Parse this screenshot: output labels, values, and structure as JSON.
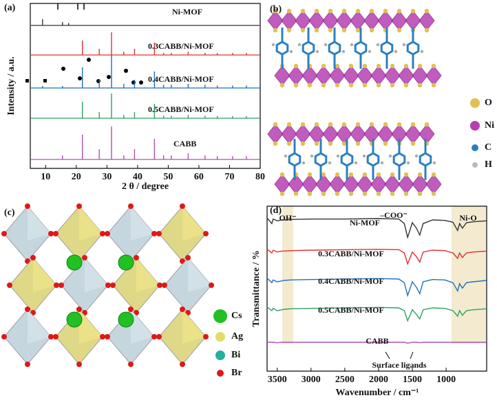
{
  "panel_labels": [
    "(a)",
    "(b)",
    "(c)",
    "(d)"
  ],
  "chart_data": [
    {
      "type": "stick",
      "xlabel": "2 θ / degree",
      "ylabel": "Intensity / a.u.",
      "xlim": [
        5,
        80
      ],
      "xticks": [
        10,
        20,
        30,
        40,
        50,
        60,
        70,
        80
      ],
      "ylim": [
        0,
        100
      ],
      "x": [
        9,
        15.5,
        17.5,
        22,
        27.5,
        31.5,
        35.5,
        39,
        45.5,
        48.5,
        51,
        56.5,
        62,
        66,
        71,
        75.5
      ],
      "series": [
        {
          "name": "Ni-MOF",
          "color": "#333333",
          "values": [
            15,
            8,
            6,
            null,
            null,
            null,
            null,
            null,
            null,
            null,
            null,
            null,
            null,
            null,
            null,
            null
          ]
        },
        {
          "name": "0.3CABB/Ni-MOF",
          "color": "#e03030",
          "values": [
            null,
            null,
            null,
            35,
            15,
            55,
            8,
            15,
            30,
            5,
            5,
            8,
            5,
            5,
            5,
            5
          ]
        },
        {
          "name": "0.4CABB/Ni-MOF",
          "color": "#1f6fc0",
          "values": [
            5,
            5,
            null,
            50,
            20,
            80,
            10,
            20,
            40,
            8,
            8,
            10,
            8,
            6,
            6,
            6
          ]
        },
        {
          "name": "0.5CABB/Ni-MOF",
          "color": "#2ea060",
          "values": [
            null,
            null,
            null,
            40,
            15,
            60,
            8,
            15,
            35,
            6,
            6,
            8,
            6,
            5,
            5,
            5
          ]
        },
        {
          "name": "CABB",
          "color": "#b050b0",
          "values": [
            null,
            10,
            null,
            60,
            25,
            80,
            10,
            25,
            50,
            10,
            10,
            15,
            10,
            8,
            8,
            8
          ]
        }
      ]
    },
    {
      "type": "line",
      "xlabel": "Wavenumber / cm⁻¹",
      "ylabel": "Transmittance / %",
      "xlim": [
        3650,
        400
      ],
      "xticks": [
        3500,
        3000,
        2500,
        2000,
        1500,
        1000
      ],
      "ylim": [
        30,
        90
      ],
      "annotations": [
        "OH⁻",
        "–COO⁻",
        "Ni-O",
        "Surface ligands"
      ],
      "x": [
        3650,
        3580,
        3560,
        3500,
        3430,
        3400,
        3300,
        3000,
        2500,
        2000,
        1700,
        1620,
        1570,
        1500,
        1440,
        1390,
        1340,
        1200,
        1020,
        900,
        830,
        800,
        760,
        700,
        600,
        400
      ],
      "series": [
        {
          "name": "Ni-MOF",
          "color": "#333333",
          "values": [
            82,
            70,
            80,
            76,
            78,
            78,
            79,
            80,
            80,
            81,
            80,
            70,
            40,
            72,
            60,
            45,
            70,
            78,
            77,
            73,
            55,
            70,
            60,
            72,
            74,
            76
          ]
        },
        {
          "name": "0.3CABB/Ni-MOF",
          "color": "#e03030",
          "values": [
            80,
            72,
            78,
            74,
            76,
            76,
            77,
            78,
            79,
            80,
            79,
            72,
            48,
            74,
            64,
            52,
            74,
            78,
            77,
            72,
            60,
            72,
            62,
            72,
            74,
            76
          ]
        },
        {
          "name": "0.4CABB/Ni-MOF",
          "color": "#1f6fc0",
          "values": [
            80,
            70,
            76,
            72,
            74,
            75,
            76,
            77,
            78,
            79,
            78,
            70,
            42,
            72,
            60,
            46,
            72,
            77,
            76,
            70,
            52,
            68,
            58,
            70,
            72,
            75
          ]
        },
        {
          "name": "0.5CABB/Ni-MOF",
          "color": "#2ea060",
          "values": [
            80,
            72,
            77,
            72,
            74,
            75,
            76,
            77,
            78,
            79,
            78,
            72,
            50,
            74,
            64,
            54,
            74,
            78,
            77,
            72,
            60,
            72,
            62,
            72,
            74,
            76
          ]
        },
        {
          "name": "CABB",
          "color": "#b050b0",
          "values": [
            78,
            78,
            78,
            77,
            78,
            78,
            78,
            78,
            78,
            78,
            78,
            78,
            76,
            78,
            78,
            77,
            78,
            78,
            78,
            78,
            78,
            78,
            78,
            78,
            78,
            78
          ]
        }
      ]
    }
  ],
  "diagram_b": {
    "legend": [
      "O",
      "Ni",
      "C",
      "H"
    ]
  },
  "diagram_c": {
    "legend": [
      "Cs",
      "Ag",
      "Bi",
      "Br"
    ]
  }
}
